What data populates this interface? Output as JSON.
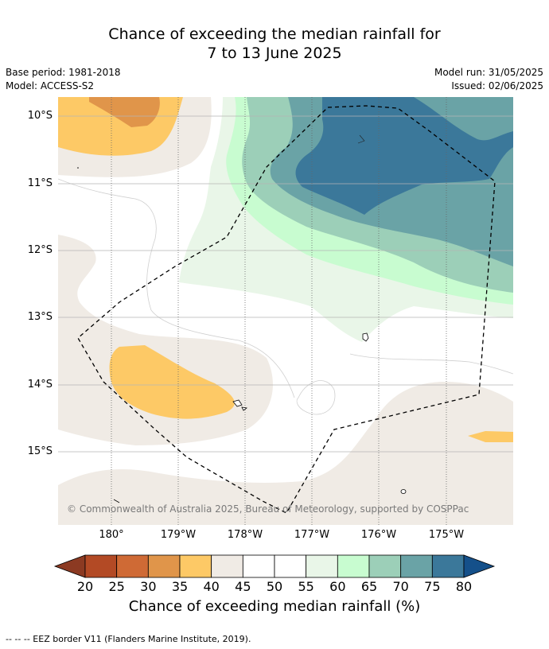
{
  "title_line1": "Chance of exceeding the median rainfall for",
  "title_line2": "7 to 13 June 2025",
  "base_period": "Base period: 1981-2018",
  "model": "Model: ACCESS-S2",
  "model_run": "Model run: 31/05/2025",
  "issued": "Issued: 02/06/2025",
  "lat_labels": [
    "10°S",
    "11°S",
    "12°S",
    "13°S",
    "14°S",
    "15°S"
  ],
  "lon_labels": [
    "180°",
    "179°W",
    "178°W",
    "177°W",
    "176°W",
    "175°W"
  ],
  "copyright": "© Commonwealth of Australia 2025, Bureau of Meteorology, supported by COSPPac",
  "colorbar": {
    "ticks": [
      "20",
      "25",
      "30",
      "35",
      "40",
      "45",
      "50",
      "55",
      "60",
      "65",
      "70",
      "75",
      "80"
    ],
    "colors": [
      "#8c3a22",
      "#b34a25",
      "#cf6a35",
      "#e0954a",
      "#fdc966",
      "#f0ebe5",
      "#ffffff",
      "#ffffff",
      "#e9f6e8",
      "#c8fcd0",
      "#9ccfb8",
      "#6aa3a6",
      "#3b789a",
      "#15508a"
    ],
    "title": "Chance of exceeding median rainfall (%)"
  },
  "footer": "--  --  -- EEZ border V11 (Flanders Marine Institute, 2019)."
}
